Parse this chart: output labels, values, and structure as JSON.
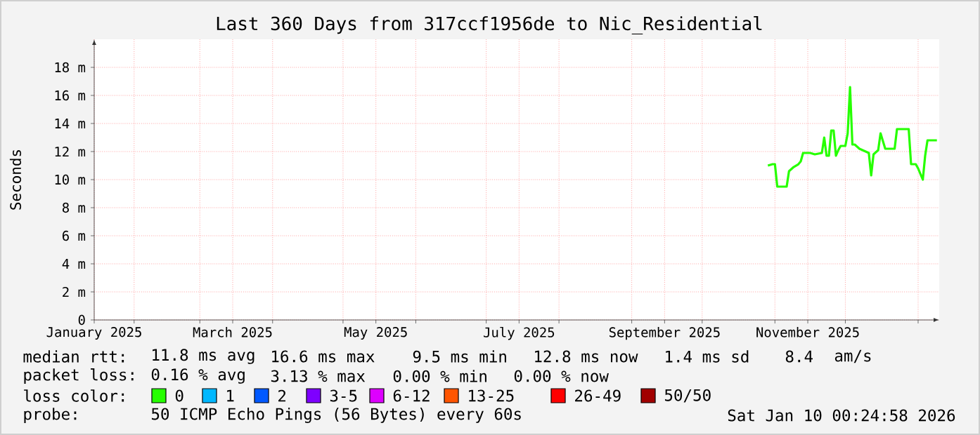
{
  "chart_data": {
    "type": "line",
    "title": "Last 360 Days from 317ccf1956de to Nic_Residential",
    "ylabel": "Seconds",
    "xlim": [
      "2025-01-15",
      "2026-01-10"
    ],
    "xticks": [
      {
        "value": "2025-01-15",
        "label": "January 2025"
      },
      {
        "value": "2025-02-01",
        "label": null
      },
      {
        "value": "2025-03-01",
        "label": null
      },
      {
        "value": "2025-03-15",
        "label": "March 2025"
      },
      {
        "value": "2025-04-01",
        "label": null
      },
      {
        "value": "2025-05-01",
        "label": null
      },
      {
        "value": "2025-05-15",
        "label": "May 2025"
      },
      {
        "value": "2025-06-01",
        "label": null
      },
      {
        "value": "2025-07-01",
        "label": null
      },
      {
        "value": "2025-07-15",
        "label": "July 2025"
      },
      {
        "value": "2025-08-01",
        "label": null
      },
      {
        "value": "2025-09-01",
        "label": null
      },
      {
        "value": "2025-09-15",
        "label": "September 2025"
      },
      {
        "value": "2025-10-01",
        "label": null
      },
      {
        "value": "2025-11-01",
        "label": null
      },
      {
        "value": "2025-11-15",
        "label": "November 2025"
      },
      {
        "value": "2025-12-01",
        "label": null
      },
      {
        "value": "2026-01-01",
        "label": null
      }
    ],
    "ylim": [
      0,
      20
    ],
    "yticks": [
      0,
      {
        "value": 2,
        "label": "2 m"
      },
      {
        "value": 4,
        "label": "4 m"
      },
      {
        "value": 6,
        "label": "6 m"
      },
      {
        "value": 8,
        "label": "8 m"
      },
      {
        "value": 10,
        "label": "10 m"
      },
      {
        "value": 12,
        "label": "12 m"
      },
      {
        "value": 14,
        "label": "14 m"
      },
      {
        "value": 16,
        "label": "16 m"
      },
      {
        "value": 18,
        "label": "18 m"
      }
    ],
    "grid": true,
    "x": [
      "2025-10-29",
      "2025-10-31",
      "2025-11-01",
      "2025-11-02",
      "2025-11-05",
      "2025-11-06",
      "2025-11-07",
      "2025-11-09",
      "2025-11-11",
      "2025-11-12",
      "2025-11-13",
      "2025-11-16",
      "2025-11-18",
      "2025-11-21",
      "2025-11-22",
      "2025-11-23",
      "2025-11-24",
      "2025-11-25",
      "2025-11-26",
      "2025-11-27",
      "2025-11-28",
      "2025-11-29",
      "2025-12-01",
      "2025-12-02",
      "2025-12-03",
      "2025-12-04",
      "2025-12-05",
      "2025-12-07",
      "2025-12-11",
      "2025-12-12",
      "2025-12-13",
      "2025-12-15",
      "2025-12-16",
      "2025-12-18",
      "2025-12-22",
      "2025-12-23",
      "2025-12-28",
      "2025-12-29",
      "2025-12-31",
      "2026-01-01",
      "2026-01-03",
      "2026-01-04",
      "2026-01-05",
      "2026-01-08",
      "2026-01-09"
    ],
    "series": [
      {
        "color": "#26ff00",
        "values": [
          11.0,
          11.1,
          11.1,
          9.5,
          9.5,
          9.5,
          10.6,
          10.9,
          11.1,
          11.3,
          11.9,
          11.9,
          11.8,
          11.9,
          13.0,
          11.7,
          11.7,
          13.5,
          13.5,
          11.7,
          12.1,
          12.4,
          12.4,
          13.3,
          16.6,
          12.5,
          12.5,
          12.2,
          11.9,
          10.3,
          11.8,
          12.1,
          13.3,
          12.2,
          12.2,
          13.6,
          13.6,
          11.1,
          11.1,
          10.8,
          10.0,
          11.7,
          12.8,
          12.8,
          12.8
        ]
      }
    ],
    "annotations": [
      "median rtt:",
      "11.8 ms avg",
      "16.6 ms max",
      "9.5 ms min",
      "12.8 ms now",
      "1.4 ms sd",
      "8.4",
      "am/s",
      "packet loss:",
      "0.16 % avg",
      "3.13 % max",
      "0.00 % min",
      "0.00 % now",
      "loss color:",
      "0",
      "1",
      "2",
      "3-5",
      "6-12",
      "13-25",
      "26-49",
      "50/50",
      "probe:",
      "50 ICMP Echo Pings (56 Bytes) every 60s",
      "Sat Jan 10 00:24:58 2026"
    ]
  }
}
